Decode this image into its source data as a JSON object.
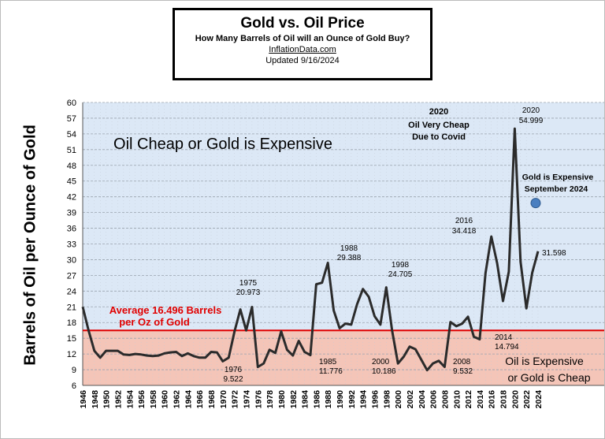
{
  "header": {
    "title": "Gold vs. Oil Price",
    "subtitle": "How Many Barrels of Oil will an Ounce of Gold Buy?",
    "source": "InflationData.com",
    "updated": "Updated  9/16/2024"
  },
  "chart_data": {
    "type": "line",
    "title": "Gold vs. Oil Price",
    "subtitle": "How Many Barrels of Oil will an Ounce of Gold Buy?",
    "ylabel": "Barrels of Oil per Ounce of Gold",
    "xlabel": "",
    "ylim": [
      6,
      60
    ],
    "yticks": [
      6,
      9,
      12,
      15,
      18,
      21,
      24,
      27,
      30,
      33,
      36,
      39,
      42,
      45,
      48,
      51,
      54,
      57,
      60
    ],
    "xticks": [
      1946,
      1948,
      1950,
      1952,
      1954,
      1956,
      1958,
      1960,
      1962,
      1964,
      1966,
      1968,
      1970,
      1972,
      1974,
      1976,
      1978,
      1980,
      1982,
      1984,
      1986,
      1988,
      1990,
      1992,
      1994,
      1996,
      1998,
      2000,
      2002,
      2004,
      2006,
      2008,
      2010,
      2012,
      2014,
      2016,
      2018,
      2020,
      2022,
      2024
    ],
    "grid": true,
    "line_color": "#2b2b2b",
    "average": {
      "value": 16.496,
      "label_line1": "Average 16.496 Barrels",
      "label_line2": "per Oz of Gold",
      "color": "#e00000"
    },
    "regions": {
      "upper": {
        "label": "Oil Cheap or Gold is Expensive",
        "color": "#dce8f6"
      },
      "lower": {
        "label_line1": "Oil is Expensive",
        "label_line2": "or Gold is Cheap",
        "color": "#f4c5b8"
      }
    },
    "current_marker": {
      "year": 2024.5,
      "value": 40.8,
      "label_line1": "Gold is Expensive",
      "label_line2": "September 2024",
      "color": "#4a7fc0"
    },
    "annotations": [
      {
        "year": 1975,
        "value": 20.973,
        "label_line1": "1975",
        "label_line2": "20.973"
      },
      {
        "year": 1976,
        "value": 9.522,
        "label_line1": "1976",
        "label_line2": "9.522"
      },
      {
        "year": 1985,
        "value": 11.776,
        "label_line1": "1985",
        "label_line2": "11.776"
      },
      {
        "year": 1988,
        "value": 29.388,
        "label_line1": "1988",
        "label_line2": "29.388"
      },
      {
        "year": 1998,
        "value": 24.705,
        "label_line1": "1998",
        "label_line2": "24.705"
      },
      {
        "year": 2000,
        "value": 10.186,
        "label_line1": "2000",
        "label_line2": "10.186"
      },
      {
        "year": 2008,
        "value": 9.532,
        "label_line1": "2008",
        "label_line2": "9.532"
      },
      {
        "year": 2014,
        "value": 14.794,
        "label_line1": "2014",
        "label_line2": "14.794"
      },
      {
        "year": 2016,
        "value": 34.418,
        "label_line1": "2016",
        "label_line2": "34.418"
      },
      {
        "year": 2020,
        "value": 54.999,
        "label_line1": "2020",
        "label_line2": "54.999"
      },
      {
        "year": 2024,
        "value": 31.598,
        "label_line1": "31.598",
        "label_line2": ""
      }
    ],
    "covid_note": {
      "line1": "2020",
      "line2": "Oil Very Cheap",
      "line3": "Due to Covid"
    },
    "series": [
      {
        "name": "",
        "x": [
          1946,
          1947,
          1948,
          1949,
          1950,
          1951,
          1952,
          1953,
          1954,
          1955,
          1956,
          1957,
          1958,
          1959,
          1960,
          1961,
          1962,
          1963,
          1964,
          1965,
          1966,
          1967,
          1968,
          1969,
          1970,
          1971,
          1972,
          1973,
          1974,
          1975,
          1976,
          1977,
          1978,
          1979,
          1980,
          1981,
          1982,
          1983,
          1984,
          1985,
          1986,
          1987,
          1988,
          1989,
          1990,
          1991,
          1992,
          1993,
          1994,
          1995,
          1996,
          1997,
          1998,
          1999,
          2000,
          2001,
          2002,
          2003,
          2004,
          2005,
          2006,
          2007,
          2008,
          2009,
          2010,
          2011,
          2012,
          2013,
          2014,
          2015,
          2016,
          2017,
          2018,
          2019,
          2020,
          2021,
          2022,
          2023,
          2024
        ],
        "values": [
          21.0,
          16.5,
          12.6,
          11.3,
          12.6,
          12.6,
          12.6,
          11.9,
          11.8,
          12.0,
          11.9,
          11.7,
          11.6,
          11.7,
          12.1,
          12.3,
          12.4,
          11.6,
          12.1,
          11.6,
          11.3,
          11.3,
          12.4,
          12.3,
          10.6,
          11.3,
          16.3,
          20.5,
          16.5,
          20.973,
          9.522,
          10.2,
          12.8,
          12.2,
          16.3,
          12.8,
          11.7,
          14.5,
          12.4,
          11.776,
          25.3,
          25.6,
          29.388,
          20.3,
          16.9,
          17.8,
          17.6,
          21.5,
          24.4,
          22.9,
          19.2,
          17.6,
          24.705,
          16.5,
          10.186,
          11.5,
          13.4,
          12.9,
          10.9,
          8.9,
          10.2,
          10.7,
          9.532,
          18.1,
          17.3,
          17.8,
          19.1,
          15.3,
          14.794,
          27.4,
          34.418,
          29.3,
          22.1,
          27.7,
          54.999,
          29.6,
          20.7,
          27.5,
          31.598
        ]
      }
    ]
  }
}
